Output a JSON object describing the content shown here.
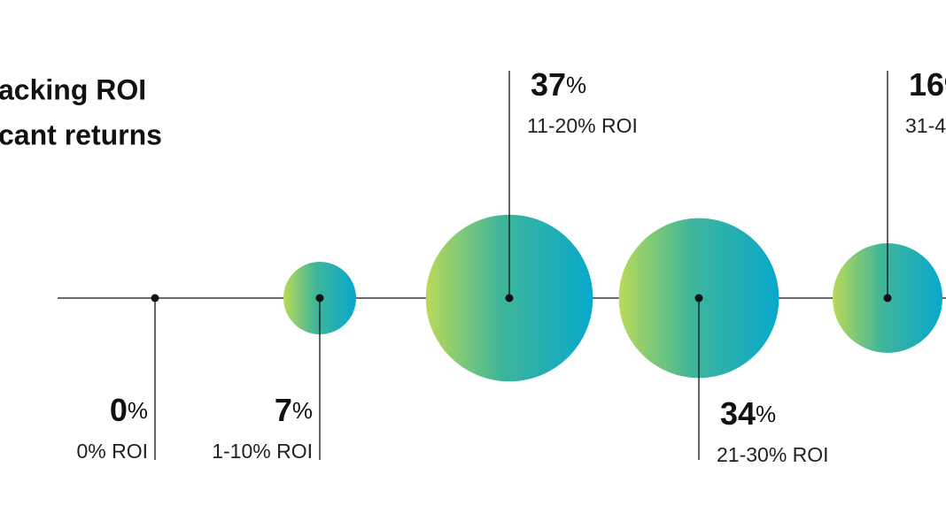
{
  "chart_data": {
    "type": "bubble",
    "title_lines": [
      "acking ROI",
      "cant returns"
    ],
    "categories": [
      "0% ROI",
      "1-10% ROI",
      "11-20% ROI",
      "21-30% ROI",
      "31-4"
    ],
    "values": [
      0,
      7,
      37,
      34,
      16
    ],
    "unit": "%",
    "colors": [
      "#b9da58",
      "#3fb59a",
      "#08a8cc"
    ]
  }
}
